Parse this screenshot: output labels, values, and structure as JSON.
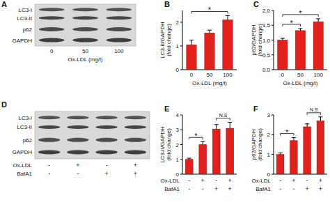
{
  "chart_data": [
    {
      "type": "blot",
      "title": "A",
      "bands": [
        "LC3-I",
        "LC3-II",
        "p62",
        "GAPDH"
      ],
      "categories": [
        "0",
        "50",
        "100"
      ],
      "xlabel": "Ox-LDL (mg/l)"
    },
    {
      "type": "bar",
      "title": "B",
      "categories": [
        "0",
        "50",
        "100"
      ],
      "values": [
        1.05,
        1.55,
        2.1
      ],
      "errors": [
        0.2,
        0.12,
        0.18
      ],
      "color": "#e3211c",
      "ylim": [
        0,
        2.5
      ],
      "yticks": [
        0,
        1,
        2
      ],
      "xlabel": "Ox-LDL (mg/l)",
      "ylabel": [
        "LC3-II/GAPDH",
        "(fold change)"
      ],
      "annotations": [
        {
          "from": 0,
          "to": 2,
          "text": "*"
        }
      ]
    },
    {
      "type": "bar",
      "title": "C",
      "categories": [
        "0",
        "50",
        "100"
      ],
      "values": [
        1.0,
        1.32,
        1.62
      ],
      "errors": [
        0.06,
        0.07,
        0.1
      ],
      "color": "#e3211c",
      "ylim": [
        0,
        2.0
      ],
      "yticks": [
        {
          "value": 0,
          "label": "0.0"
        },
        {
          "value": 0.5,
          "label": "0.5"
        },
        {
          "value": 1,
          "label": "1.0"
        },
        {
          "value": 1.5,
          "label": "1.5"
        },
        {
          "value": 2,
          "label": "2.0"
        }
      ],
      "xlabel": "Ox-LDL (mg/l)",
      "ylabel": [
        "p62/GAPDH",
        "(fold change)"
      ],
      "annotations": [
        {
          "from": 0,
          "to": 1,
          "text": "*"
        },
        {
          "from": 0,
          "to": 2,
          "text": "*"
        }
      ]
    },
    {
      "type": "blot",
      "title": "D",
      "bands": [
        "LC3-I",
        "LC3-II",
        "p62",
        "GAPDH"
      ],
      "conditions": [
        {
          "label": "Ox-LDL",
          "values": [
            "-",
            "+",
            "-",
            "+"
          ]
        },
        {
          "label": "BafA1",
          "values": [
            "-",
            "-",
            "+",
            "+"
          ]
        }
      ]
    },
    {
      "type": "bar",
      "title": "E",
      "values": [
        1.0,
        2.0,
        3.05,
        3.1
      ],
      "errors": [
        0.08,
        0.2,
        0.3,
        0.4
      ],
      "color": "#e3211c",
      "ylim": [
        0,
        4
      ],
      "yticks": [
        0,
        1,
        2,
        3,
        4
      ],
      "ylabel": [
        "LC3-II/GAPDH",
        "(fold change)"
      ],
      "conditions": [
        {
          "label": "Ox-LDL",
          "values": [
            "-",
            "+",
            "-",
            "+"
          ]
        },
        {
          "label": "BafA1",
          "values": [
            "-",
            "-",
            "+",
            "+"
          ]
        }
      ],
      "annotations": [
        {
          "from": 0,
          "to": 1,
          "text": "*"
        },
        {
          "from": 2,
          "to": 3,
          "text": "N.S"
        }
      ]
    },
    {
      "type": "bar",
      "title": "F",
      "values": [
        1.0,
        1.7,
        2.4,
        2.7
      ],
      "errors": [
        0.08,
        0.15,
        0.15,
        0.2
      ],
      "color": "#e3211c",
      "ylim": [
        0,
        3
      ],
      "yticks": [
        0,
        1,
        2,
        3
      ],
      "ylabel": [
        "p62/GAPDH",
        "(fold change)"
      ],
      "conditions": [
        {
          "label": "Ox-LDL",
          "values": [
            "-",
            "+",
            "-",
            "+"
          ]
        },
        {
          "label": "BafA1",
          "values": [
            "-",
            "-",
            "+",
            "+"
          ]
        }
      ],
      "annotations": [
        {
          "from": 0,
          "to": 1,
          "text": "*"
        },
        {
          "from": 2,
          "to": 3,
          "text": "N.S"
        }
      ]
    }
  ]
}
